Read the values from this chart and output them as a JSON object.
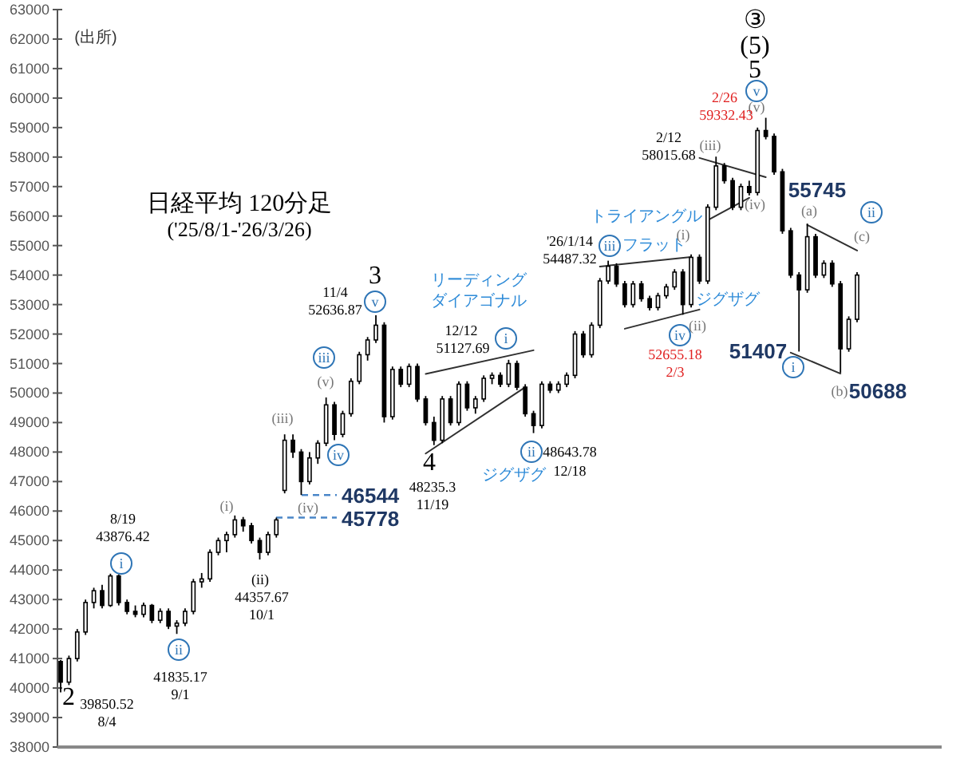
{
  "chart_data": {
    "type": "candlestick",
    "title": "日経平均 120分足",
    "subtitle": "('25/8/1-'26/3/26)",
    "categories": [
      null,
      null,
      null,
      null,
      null,
      null,
      null,
      null,
      null,
      null,
      null,
      null,
      null,
      null,
      null,
      null,
      null,
      null,
      null,
      null,
      null,
      null,
      null,
      null,
      null,
      null,
      null,
      null,
      null,
      null,
      null,
      null,
      null,
      null,
      null,
      null,
      null,
      null,
      null,
      null,
      null,
      null,
      null,
      null,
      null,
      null,
      null,
      null,
      null,
      null,
      null,
      null,
      null,
      null,
      null,
      null,
      null,
      null,
      null,
      null,
      null,
      null,
      null,
      null,
      null,
      null,
      null,
      null,
      null,
      null,
      null,
      null,
      null,
      null,
      null,
      null,
      null,
      null,
      null,
      null,
      null,
      null,
      null,
      null,
      null,
      null,
      null,
      null,
      null,
      null,
      null,
      null,
      null,
      null,
      null,
      null,
      null
    ],
    "ohlc": [
      [
        40900,
        40950,
        39850,
        40200
      ],
      [
        40200,
        41100,
        40100,
        41000
      ],
      [
        41000,
        42000,
        40900,
        41900
      ],
      [
        41900,
        43000,
        41800,
        42900
      ],
      [
        42900,
        43400,
        42700,
        43300
      ],
      [
        43300,
        43500,
        42700,
        42800
      ],
      [
        42800,
        43876,
        42750,
        43800
      ],
      [
        43800,
        43850,
        42800,
        42900
      ],
      [
        42900,
        43000,
        42500,
        42600
      ],
      [
        42600,
        42800,
        42400,
        42500
      ],
      [
        42500,
        42900,
        42400,
        42800
      ],
      [
        42800,
        42850,
        42200,
        42300
      ],
      [
        42300,
        42700,
        42200,
        42600
      ],
      [
        42600,
        42700,
        42000,
        42100
      ],
      [
        42100,
        42300,
        41835,
        42200
      ],
      [
        42200,
        42700,
        42100,
        42600
      ],
      [
        42600,
        43700,
        42500,
        43600
      ],
      [
        43600,
        43900,
        43400,
        43700
      ],
      [
        43700,
        44700,
        43600,
        44600
      ],
      [
        44600,
        45100,
        44500,
        45000
      ],
      [
        45000,
        45300,
        44600,
        45200
      ],
      [
        45200,
        45850,
        45100,
        45700
      ],
      [
        45700,
        45800,
        45300,
        45500
      ],
      [
        45500,
        45600,
        44900,
        45000
      ],
      [
        45000,
        45100,
        44357,
        44600
      ],
      [
        44600,
        45300,
        44500,
        45200
      ],
      [
        45200,
        45778,
        45100,
        45700
      ],
      [
        46700,
        48600,
        46600,
        48400
      ],
      [
        48400,
        48600,
        47800,
        48000
      ],
      [
        48000,
        48100,
        46544,
        47000
      ],
      [
        47000,
        48000,
        46900,
        47800
      ],
      [
        47800,
        48400,
        47600,
        48300
      ],
      [
        48300,
        49850,
        48200,
        49600
      ],
      [
        49600,
        49700,
        48400,
        48600
      ],
      [
        48600,
        49400,
        48500,
        49300
      ],
      [
        49300,
        50500,
        49200,
        50400
      ],
      [
        50400,
        51400,
        50300,
        51300
      ],
      [
        51300,
        51900,
        51100,
        51800
      ],
      [
        51800,
        52636,
        51700,
        52300
      ],
      [
        52300,
        52400,
        49000,
        49200
      ],
      [
        49200,
        50900,
        49100,
        50800
      ],
      [
        50800,
        50900,
        50200,
        50300
      ],
      [
        50300,
        51000,
        50200,
        50900
      ],
      [
        50900,
        51000,
        49700,
        49800
      ],
      [
        49800,
        49900,
        48900,
        49000
      ],
      [
        49000,
        49200,
        48235,
        48400
      ],
      [
        48400,
        49900,
        48300,
        49800
      ],
      [
        49800,
        49900,
        48900,
        49000
      ],
      [
        49000,
        50400,
        48900,
        50300
      ],
      [
        50300,
        50400,
        49400,
        49500
      ],
      [
        49500,
        49900,
        49300,
        49800
      ],
      [
        49800,
        50600,
        49700,
        50500
      ],
      [
        50500,
        50700,
        50300,
        50600
      ],
      [
        50600,
        50700,
        50200,
        50300
      ],
      [
        50300,
        51127,
        50200,
        51000
      ],
      [
        51000,
        51100,
        50100,
        50200
      ],
      [
        50200,
        50300,
        49200,
        49300
      ],
      [
        49300,
        49400,
        48643,
        48900
      ],
      [
        48900,
        50400,
        48800,
        50300
      ],
      [
        50300,
        50400,
        50000,
        50100
      ],
      [
        50100,
        50400,
        50000,
        50300
      ],
      [
        50300,
        50700,
        50200,
        50600
      ],
      [
        50600,
        52100,
        50500,
        52000
      ],
      [
        52000,
        52100,
        51200,
        51300
      ],
      [
        51300,
        52400,
        51200,
        52300
      ],
      [
        52300,
        53900,
        52200,
        53800
      ],
      [
        53800,
        54487,
        53700,
        54300
      ],
      [
        54300,
        54400,
        53600,
        53700
      ],
      [
        53700,
        53800,
        52900,
        53000
      ],
      [
        53000,
        53800,
        52900,
        53700
      ],
      [
        53700,
        53800,
        53100,
        53200
      ],
      [
        53200,
        53300,
        52800,
        52900
      ],
      [
        52900,
        53400,
        52800,
        53300
      ],
      [
        53300,
        53700,
        53200,
        53600
      ],
      [
        53600,
        54200,
        53500,
        54100
      ],
      [
        54100,
        54200,
        52655,
        53000
      ],
      [
        53000,
        54700,
        52900,
        54600
      ],
      [
        54600,
        54700,
        53700,
        53800
      ],
      [
        53800,
        56400,
        53700,
        56300
      ],
      [
        56300,
        58015,
        56200,
        57700
      ],
      [
        57700,
        57800,
        57100,
        57200
      ],
      [
        57200,
        57300,
        56200,
        56300
      ],
      [
        56300,
        57100,
        56200,
        57000
      ],
      [
        57000,
        57200,
        56700,
        56800
      ],
      [
        56800,
        59000,
        56700,
        58900
      ],
      [
        58900,
        59332,
        58600,
        58700
      ],
      [
        58700,
        58800,
        57400,
        57500
      ],
      [
        57500,
        57600,
        55400,
        55500
      ],
      [
        55500,
        55600,
        53900,
        54000
      ],
      [
        54000,
        54100,
        51407,
        53500
      ],
      [
        53500,
        55745,
        53400,
        55300
      ],
      [
        55300,
        55400,
        53900,
        54000
      ],
      [
        54000,
        54500,
        53900,
        54400
      ],
      [
        54400,
        54500,
        53600,
        53700
      ],
      [
        53700,
        53800,
        50688,
        51500
      ],
      [
        51500,
        52600,
        51400,
        52500
      ],
      [
        52500,
        54100,
        52400,
        54000
      ]
    ],
    "series": [
      {
        "type": "line",
        "color": "#303030",
        "values": [
          null,
          null,
          null,
          null,
          null,
          null,
          null,
          null,
          null,
          null,
          null,
          null,
          null,
          null,
          null,
          null,
          null,
          null,
          null,
          null,
          null,
          null,
          null,
          null,
          null,
          null,
          null,
          null,
          null,
          null,
          null,
          null,
          null,
          null,
          null,
          null,
          null,
          null,
          null,
          null,
          null,
          null,
          null,
          null,
          50650,
          null,
          null,
          null,
          null,
          null,
          null,
          null,
          null,
          null,
          null,
          null,
          null,
          51450,
          null,
          null,
          null,
          null,
          null,
          null,
          null,
          null,
          null,
          null,
          null,
          null,
          null,
          null,
          null,
          null,
          null,
          null,
          null,
          null,
          null,
          null,
          null,
          null,
          null,
          null,
          null,
          null,
          null,
          null,
          null,
          null,
          null,
          null,
          null,
          null,
          null,
          null,
          null
        ]
      },
      {
        "type": "line",
        "color": "#303030",
        "values": [
          null,
          null,
          null,
          null,
          null,
          null,
          null,
          null,
          null,
          null,
          null,
          null,
          null,
          null,
          null,
          null,
          null,
          null,
          null,
          null,
          null,
          null,
          null,
          null,
          null,
          null,
          null,
          null,
          null,
          null,
          null,
          null,
          null,
          null,
          null,
          null,
          null,
          null,
          null,
          null,
          null,
          null,
          null,
          null,
          47950,
          null,
          null,
          null,
          null,
          null,
          null,
          null,
          null,
          null,
          null,
          null,
          50200,
          null,
          null,
          null,
          null,
          null,
          null,
          null,
          null,
          null,
          null,
          null,
          null,
          null,
          null,
          null,
          null,
          null,
          null,
          null,
          null,
          null,
          null,
          null,
          null,
          null,
          null,
          null,
          null,
          null,
          null,
          null,
          null,
          null,
          null,
          null,
          null,
          null,
          null,
          null,
          null
        ]
      },
      {
        "type": "line",
        "color": "#303030",
        "values": [
          null,
          null,
          null,
          null,
          null,
          null,
          null,
          null,
          null,
          null,
          null,
          null,
          null,
          null,
          null,
          null,
          null,
          null,
          null,
          null,
          null,
          null,
          null,
          null,
          null,
          null,
          null,
          null,
          null,
          null,
          null,
          null,
          null,
          null,
          null,
          null,
          null,
          null,
          null,
          null,
          null,
          null,
          null,
          null,
          null,
          null,
          null,
          null,
          null,
          null,
          null,
          null,
          null,
          null,
          null,
          null,
          null,
          null,
          null,
          null,
          null,
          null,
          null,
          null,
          null,
          54290,
          null,
          null,
          null,
          null,
          null,
          null,
          null,
          null,
          null,
          null,
          54610,
          null,
          null,
          null,
          null,
          null,
          null,
          null,
          null,
          null,
          null,
          null,
          null,
          null,
          null,
          null,
          null,
          null,
          null,
          null,
          null
        ]
      },
      {
        "type": "line",
        "color": "#303030",
        "values": [
          null,
          null,
          null,
          null,
          null,
          null,
          null,
          null,
          null,
          null,
          null,
          null,
          null,
          null,
          null,
          null,
          null,
          null,
          null,
          null,
          null,
          null,
          null,
          null,
          null,
          null,
          null,
          null,
          null,
          null,
          null,
          null,
          null,
          null,
          null,
          null,
          null,
          null,
          null,
          null,
          null,
          null,
          null,
          null,
          null,
          null,
          null,
          null,
          null,
          null,
          null,
          null,
          null,
          null,
          null,
          null,
          null,
          null,
          null,
          null,
          null,
          null,
          null,
          null,
          null,
          null,
          null,
          null,
          52180,
          null,
          null,
          null,
          null,
          null,
          null,
          null,
          null,
          52830,
          null,
          null,
          null,
          null,
          null,
          null,
          null,
          null,
          null,
          null,
          null,
          null,
          null,
          null,
          null,
          null,
          null,
          null,
          null
        ]
      },
      {
        "type": "line",
        "color": "#303030",
        "values": [
          null,
          null,
          null,
          null,
          null,
          null,
          null,
          null,
          null,
          null,
          null,
          null,
          null,
          null,
          null,
          null,
          null,
          null,
          null,
          null,
          null,
          null,
          null,
          null,
          null,
          null,
          null,
          null,
          null,
          null,
          null,
          null,
          null,
          null,
          null,
          null,
          null,
          null,
          null,
          null,
          null,
          null,
          null,
          null,
          null,
          null,
          null,
          null,
          null,
          null,
          null,
          null,
          null,
          null,
          null,
          null,
          null,
          null,
          null,
          null,
          null,
          null,
          null,
          null,
          null,
          null,
          null,
          null,
          null,
          null,
          null,
          null,
          null,
          null,
          null,
          null,
          null,
          57970,
          null,
          null,
          null,
          null,
          null,
          null,
          null,
          57320,
          null,
          null,
          null,
          null,
          null,
          null,
          null,
          null,
          null,
          null,
          null
        ]
      },
      {
        "type": "line",
        "color": "#303030",
        "values": [
          null,
          null,
          null,
          null,
          null,
          null,
          null,
          null,
          null,
          null,
          null,
          null,
          null,
          null,
          null,
          null,
          null,
          null,
          null,
          null,
          null,
          null,
          null,
          null,
          null,
          null,
          null,
          null,
          null,
          null,
          null,
          null,
          null,
          null,
          null,
          null,
          null,
          null,
          null,
          null,
          null,
          null,
          null,
          null,
          null,
          null,
          null,
          null,
          null,
          null,
          null,
          null,
          null,
          null,
          null,
          null,
          null,
          null,
          null,
          null,
          null,
          null,
          null,
          null,
          null,
          null,
          null,
          null,
          null,
          null,
          null,
          null,
          null,
          null,
          null,
          null,
          null,
          null,
          55860,
          null,
          null,
          null,
          null,
          56620,
          null,
          null,
          null,
          null,
          null,
          null,
          null,
          null,
          null,
          null,
          null,
          null,
          null
        ]
      },
      {
        "type": "line",
        "color": "#303030",
        "values": [
          null,
          null,
          null,
          null,
          null,
          null,
          null,
          null,
          null,
          null,
          null,
          null,
          null,
          null,
          null,
          null,
          null,
          null,
          null,
          null,
          null,
          null,
          null,
          null,
          null,
          null,
          null,
          null,
          null,
          null,
          null,
          null,
          null,
          null,
          null,
          null,
          null,
          null,
          null,
          null,
          null,
          null,
          null,
          null,
          null,
          null,
          null,
          null,
          null,
          null,
          null,
          null,
          null,
          null,
          null,
          null,
          null,
          null,
          null,
          null,
          null,
          null,
          null,
          null,
          null,
          null,
          null,
          null,
          null,
          null,
          null,
          null,
          null,
          null,
          null,
          null,
          null,
          null,
          null,
          null,
          null,
          null,
          null,
          null,
          null,
          null,
          null,
          null,
          51370,
          null,
          null,
          null,
          null,
          null,
          50660,
          null,
          null
        ]
      },
      {
        "type": "line",
        "color": "#303030",
        "values": [
          null,
          null,
          null,
          null,
          null,
          null,
          null,
          null,
          null,
          null,
          null,
          null,
          null,
          null,
          null,
          null,
          null,
          null,
          null,
          null,
          null,
          null,
          null,
          null,
          null,
          null,
          null,
          null,
          null,
          null,
          null,
          null,
          null,
          null,
          null,
          null,
          null,
          null,
          null,
          null,
          null,
          null,
          null,
          null,
          null,
          null,
          null,
          null,
          null,
          null,
          null,
          null,
          null,
          null,
          null,
          null,
          null,
          null,
          null,
          null,
          null,
          null,
          null,
          null,
          null,
          null,
          null,
          null,
          null,
          null,
          null,
          null,
          null,
          null,
          null,
          null,
          null,
          null,
          null,
          null,
          null,
          null,
          null,
          null,
          null,
          null,
          null,
          null,
          null,
          null,
          55700,
          null,
          null,
          null,
          null,
          null,
          54830
        ]
      }
    ],
    "ylim": [
      38000,
      63000
    ],
    "yticks": [
      38000,
      39000,
      40000,
      41000,
      42000,
      43000,
      44000,
      45000,
      46000,
      47000,
      48000,
      49000,
      50000,
      51000,
      52000,
      53000,
      54000,
      55000,
      56000,
      57000,
      58000,
      59000,
      60000,
      61000,
      62000,
      63000
    ],
    "tick_labels": "y",
    "ref_lines": [
      {
        "axis": "y",
        "value": 46544,
        "label": "46544",
        "color": "#4a86c8",
        "line_style": "dashed"
      },
      {
        "axis": "y",
        "value": 45778,
        "label": "45778",
        "color": "#4a86c8",
        "line_style": "dashed"
      }
    ],
    "annotations": [
      "(出所)",
      "2",
      "39850.52",
      "8/4",
      "8/19",
      "43876.42",
      "i",
      "ii",
      "41835.17",
      "9/1",
      "(i)",
      "(ii)",
      "44357.67",
      "10/1",
      "(iii)",
      "(iv)",
      "(v)",
      "iii",
      "iv",
      "11/4",
      "52636.87",
      "3",
      "v",
      "4",
      "48235.3",
      "11/19",
      "リーディング",
      "ダイアゴナル",
      "12/12",
      "51127.69",
      "i",
      "ii",
      "48643.78",
      "12/18",
      "ジグザグ",
      "'26/1/14",
      "54487.32",
      "iii",
      "フラット",
      "(i)",
      "iv",
      "(ii)",
      "ジグザグ",
      "52655.18",
      "2/3",
      "2/12",
      "58015.68",
      "(iii)",
      "(iv)",
      "トライアングル",
      "③",
      "(5)",
      "5",
      "v",
      "(v)",
      "2/26",
      "59332.43",
      "55745",
      "(a)",
      "ii",
      "(c)",
      "51407",
      "i",
      "(b)",
      "50688"
    ]
  }
}
